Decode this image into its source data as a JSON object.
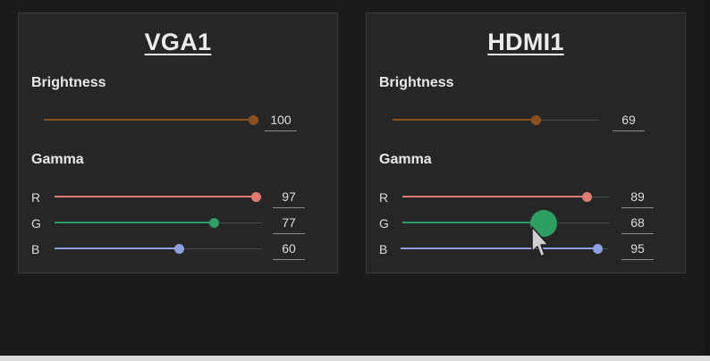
{
  "colors": {
    "brightness": "#8a5020",
    "red": "#e07d73",
    "green": "#2e9e63",
    "blue": "#8fa0e0"
  },
  "displays": [
    {
      "title": "VGA1",
      "brightness_label": "Brightness",
      "brightness": 100,
      "gamma_label": "Gamma",
      "gamma": [
        {
          "channel": "R",
          "value": 97
        },
        {
          "channel": "G",
          "value": 77
        },
        {
          "channel": "B",
          "value": 60
        }
      ]
    },
    {
      "title": "HDMI1",
      "brightness_label": "Brightness",
      "brightness": 69,
      "gamma_label": "Gamma",
      "gamma": [
        {
          "channel": "R",
          "value": 89
        },
        {
          "channel": "G",
          "value": 68
        },
        {
          "channel": "B",
          "value": 95
        }
      ]
    }
  ],
  "cursor_icon": "mouse-pointer-icon"
}
